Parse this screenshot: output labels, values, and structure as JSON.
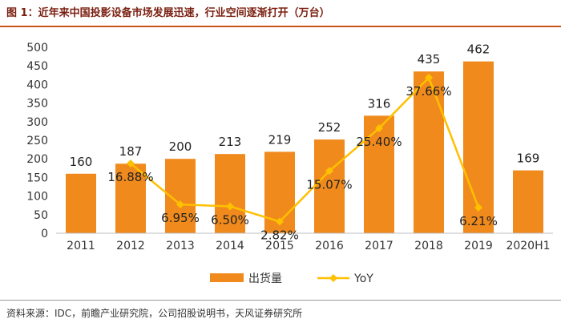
{
  "title": "图 1：近年来中国投影设备市场发展迅速，行业空间逐渐打开（万台）",
  "source": "资料来源：IDC，前瞻产业研究院，公司招股说明书，天风证券研究所",
  "chart_data": {
    "type": "bar",
    "categories": [
      "2011",
      "2012",
      "2013",
      "2014",
      "2015",
      "2016",
      "2017",
      "2018",
      "2019",
      "2020H1"
    ],
    "ylim": [
      0,
      500
    ],
    "yticks": [
      "0",
      "50",
      "100",
      "150",
      "200",
      "250",
      "300",
      "350",
      "400",
      "450",
      "500"
    ],
    "grid": false,
    "legend_position": "bottom",
    "series": [
      {
        "name": "出货量",
        "type": "bar",
        "color": "#f08a1d",
        "values": [
          160,
          187,
          200,
          213,
          219,
          252,
          316,
          435,
          462,
          169
        ],
        "labels": [
          "160",
          "187",
          "200",
          "213",
          "219",
          "252",
          "316",
          "435",
          "462",
          "169"
        ]
      },
      {
        "name": "YoY",
        "type": "line",
        "color": "#ffc000",
        "values": [
          null,
          16.88,
          6.95,
          6.5,
          2.82,
          15.07,
          25.4,
          37.66,
          6.21,
          null
        ],
        "labels": [
          "",
          "16.88%",
          "6.95%",
          "6.50%",
          "2.82%",
          "15.07%",
          "25.40%",
          "37.66%",
          "6.21%",
          ""
        ]
      }
    ]
  }
}
